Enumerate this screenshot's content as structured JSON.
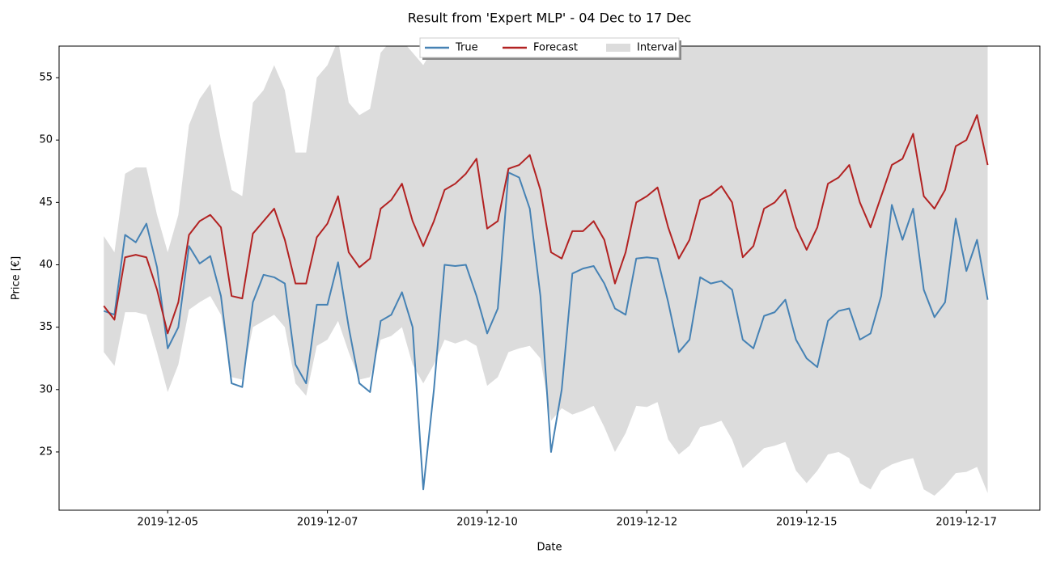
{
  "chart_data": {
    "type": "line",
    "title": "Result from 'Expert MLP' - 04 Dec to 17 Dec",
    "x_label": "Date",
    "y_label": "Price [€]",
    "x": [
      4,
      4.1667,
      4.3333,
      4.5,
      4.6667,
      4.8333,
      5,
      5.1667,
      5.3333,
      5.5,
      5.6667,
      5.8333,
      6,
      6.1667,
      6.3333,
      6.5,
      6.6667,
      6.8333,
      7,
      7.1667,
      7.3333,
      7.5,
      7.6667,
      7.8333,
      8,
      8.1667,
      8.3333,
      8.5,
      8.6667,
      8.8333,
      9,
      9.1667,
      9.3333,
      9.5,
      9.6667,
      9.8333,
      10,
      10.1667,
      10.3333,
      10.5,
      10.6667,
      10.8333,
      11,
      11.1667,
      11.3333,
      11.5,
      11.6667,
      11.8333,
      12,
      12.1667,
      12.3333,
      12.5,
      12.6667,
      12.8333,
      13,
      13.1667,
      13.3333,
      13.5,
      13.6667,
      13.8333,
      14,
      14.1667,
      14.3333,
      14.5,
      14.6667,
      14.8333,
      15,
      15.1667,
      15.3333,
      15.5,
      15.6667,
      15.8333,
      16,
      16.1667,
      16.3333,
      16.5,
      16.6667,
      16.8333,
      17,
      17.1667,
      17.3333,
      17.5,
      17.6667,
      17.8333
    ],
    "series": [
      {
        "name": "True",
        "color": "#4682b4",
        "values": [
          36.3,
          36,
          42.4,
          41.8,
          43.3,
          39.8,
          33.3,
          35,
          41.5,
          40.1,
          40.7,
          37.5,
          30.5,
          30.2,
          37,
          39.2,
          39,
          38.5,
          32,
          30.5,
          36.8,
          36.8,
          40.2,
          35,
          30.5,
          29.8,
          35.5,
          36,
          37.8,
          35,
          22,
          30,
          40,
          39.9,
          40,
          37.5,
          34.5,
          36.5,
          47.4,
          47,
          44.5,
          37.5,
          25,
          30,
          39.3,
          39.7,
          39.9,
          38.5,
          36.5,
          36,
          40.5,
          40.6,
          40.5,
          37,
          33,
          34,
          39,
          38.5,
          38.7,
          38,
          34,
          33.3,
          35.9,
          36.2,
          37.2,
          34,
          32.5,
          31.8,
          35.5,
          36.3,
          36.5,
          34,
          34.5,
          37.5,
          44.8,
          42,
          44.5,
          38,
          35.8,
          37,
          43.7,
          39.5,
          42,
          37.2
        ]
      },
      {
        "name": "Forecast",
        "color": "#b22222",
        "values": [
          36.7,
          35.6,
          40.6,
          40.8,
          40.6,
          38,
          34.5,
          37,
          42.4,
          43.5,
          44,
          43,
          37.5,
          37.3,
          42.5,
          43.5,
          44.5,
          42,
          38.5,
          38.5,
          42.2,
          43.3,
          45.5,
          41,
          39.8,
          40.5,
          44.5,
          45.2,
          46.5,
          43.5,
          41.5,
          43.5,
          46,
          46.5,
          47.3,
          48.5,
          42.9,
          43.5,
          47.7,
          48,
          48.8,
          46,
          41,
          40.5,
          42.7,
          42.7,
          43.5,
          42,
          38.5,
          41,
          45,
          45.5,
          46.2,
          43,
          40.5,
          42,
          45.2,
          45.6,
          46.3,
          45,
          40.6,
          41.5,
          44.5,
          45,
          46,
          43,
          41.2,
          43,
          46.5,
          47,
          48,
          45,
          43,
          45.5,
          48,
          48.5,
          50.5,
          45.5,
          44.5,
          46,
          49.5,
          50,
          52,
          48
        ]
      }
    ],
    "interval": {
      "name": "Interval",
      "color": "#dcdcdc",
      "lower": [
        33,
        31.9,
        36.2,
        36.2,
        36,
        33,
        29.8,
        32,
        36.4,
        37,
        37.5,
        36,
        31,
        30.8,
        35,
        35.5,
        36,
        35,
        30.5,
        29.5,
        33.5,
        34,
        35.5,
        33,
        30.8,
        31,
        34,
        34.3,
        35,
        32,
        30.5,
        32,
        34,
        33.7,
        34,
        33.5,
        30.3,
        31,
        33,
        33.3,
        33.5,
        32.5,
        27.5,
        28.5,
        28,
        28.3,
        28.7,
        27,
        25,
        26.5,
        28.7,
        28.6,
        29,
        26,
        24.8,
        25.5,
        27,
        27.2,
        27.5,
        26,
        23.7,
        24.5,
        25.3,
        25.5,
        25.8,
        23.5,
        22.5,
        23.5,
        24.8,
        25,
        24.5,
        22.5,
        22,
        23.5,
        24,
        24.3,
        24.5,
        22,
        21.5,
        22.3,
        23.3,
        23.4,
        23.8,
        21.7
      ],
      "upper": [
        42.3,
        41,
        47.3,
        47.8,
        47.8,
        44,
        41,
        44,
        51.2,
        53.3,
        54.5,
        50,
        46,
        45.5,
        53,
        54,
        56,
        54,
        49,
        49,
        55,
        56,
        58,
        53,
        52,
        52.5,
        57,
        58,
        58,
        57,
        56,
        57.5,
        58,
        58,
        58,
        58,
        58,
        58,
        58,
        58,
        58,
        58,
        58,
        58,
        58,
        58,
        58,
        58,
        58,
        58,
        58,
        58,
        58,
        58,
        58,
        58,
        58,
        58,
        58,
        58,
        58,
        58,
        58,
        58,
        58,
        58,
        58,
        58,
        58,
        58,
        58,
        58,
        58,
        58,
        58,
        58,
        58,
        58,
        58,
        58,
        58,
        58,
        58,
        58
      ]
    },
    "xlim": [
      3.3,
      18.65
    ],
    "ylim": [
      20.33,
      57.53
    ],
    "xticks": [
      {
        "value": 5,
        "label": "2019-12-05"
      },
      {
        "value": 7.5,
        "label": "2019-12-07"
      },
      {
        "value": 10,
        "label": "2019-12-10"
      },
      {
        "value": 12.5,
        "label": "2019-12-12"
      },
      {
        "value": 15,
        "label": "2019-12-15"
      },
      {
        "value": 17.5,
        "label": "2019-12-17"
      }
    ],
    "yticks": [
      25,
      30,
      35,
      40,
      45,
      50,
      55
    ],
    "legend": "upper center",
    "grid": false
  }
}
